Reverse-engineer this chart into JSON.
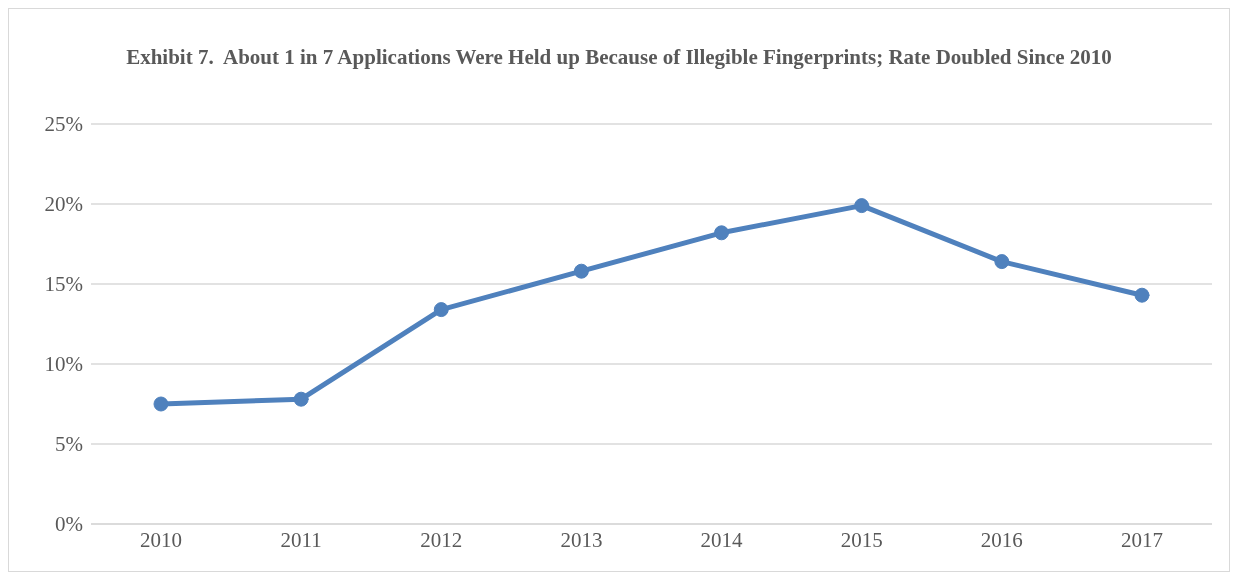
{
  "chart_data": {
    "type": "line",
    "title": "Exhibit 7.  About 1 in 7 Applications Were Held up Because of Illegible Fingerprints; Rate Doubled Since 2010",
    "categories": [
      "2010",
      "2011",
      "2012",
      "2013",
      "2014",
      "2015",
      "2016",
      "2017"
    ],
    "series": [
      {
        "color": "#4f81bd",
        "values": [
          7.5,
          7.8,
          13.4,
          15.8,
          18.2,
          19.9,
          16.4,
          14.3
        ]
      }
    ],
    "ylim": [
      0,
      25
    ],
    "yticks": [
      {
        "value": 0,
        "label": "0%"
      },
      {
        "value": 5,
        "label": "5%"
      },
      {
        "value": 10,
        "label": "10%"
      },
      {
        "value": 15,
        "label": "15%"
      },
      {
        "value": 20,
        "label": "20%"
      },
      {
        "value": 25,
        "label": "25%"
      }
    ],
    "grid": "y",
    "legend": false,
    "marker": "circle",
    "line_style": "solid"
  }
}
